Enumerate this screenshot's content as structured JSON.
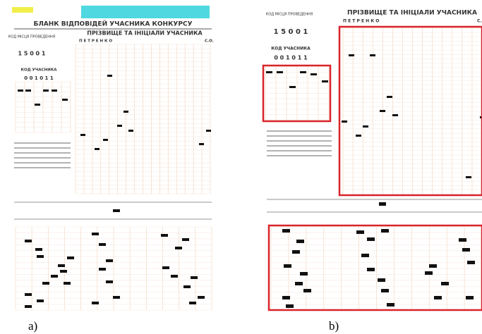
{
  "panels": [
    {
      "label": "a)",
      "title": "БЛАНК ВІДПОВІДЕЙ УЧАСНИКА КОНКУРСУ",
      "site_code_label": "КОД МІСЦЯ ПРОВЕДЕННЯ",
      "site_code": "1 5 0 0 1",
      "participant_code_label": "КОД УЧАСНИКА",
      "participant_code": "0 0 1 0 1 1",
      "name_label": "ПРІЗВИЩЕ ТА ІНІЦІАЛИ УЧАСНИКА",
      "surname": "П Е Т Р Е Н К О",
      "initials": "С.О."
    },
    {
      "label": "b)",
      "site_code_label": "КОД МІСЦЯ ПРОВЕДЕННЯ",
      "site_code": "1 5 0 0 1",
      "participant_code_label": "КОД УЧАСНИКА",
      "participant_code": "0 0 1 0 1 1",
      "name_label": "ПРІЗВИЩЕ ТА ІНІЦІАЛИ УЧАСНИКА",
      "surname": "П Е Т Р Е Н К О",
      "initials": "С."
    }
  ]
}
